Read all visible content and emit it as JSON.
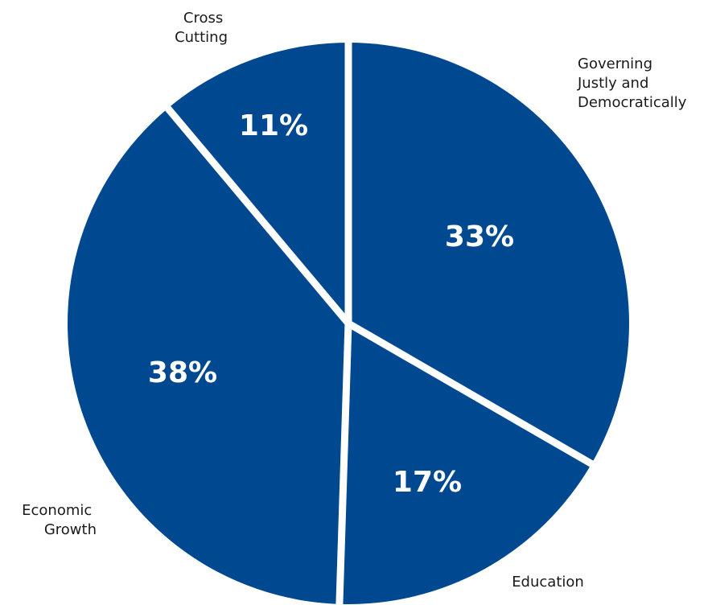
{
  "chart_data": {
    "type": "pie",
    "slices": [
      {
        "category": "Governing Justly and Democratically",
        "label_lines": [
          "Governing",
          "Justly and",
          "Democratically"
        ],
        "value": 33,
        "value_label": "33%"
      },
      {
        "category": "Education",
        "label_lines": [
          "Education"
        ],
        "value": 17,
        "value_label": "17%"
      },
      {
        "category": "Economic Growth",
        "label_lines": [
          "Economic",
          "Growth"
        ],
        "value": 38,
        "value_label": "38%"
      },
      {
        "category": "Cross Cutting",
        "label_lines": [
          "Cross",
          "Cutting"
        ],
        "value": 11,
        "value_label": "11%"
      }
    ],
    "colors": {
      "slice": "#004990",
      "separator": "#ffffff"
    }
  }
}
